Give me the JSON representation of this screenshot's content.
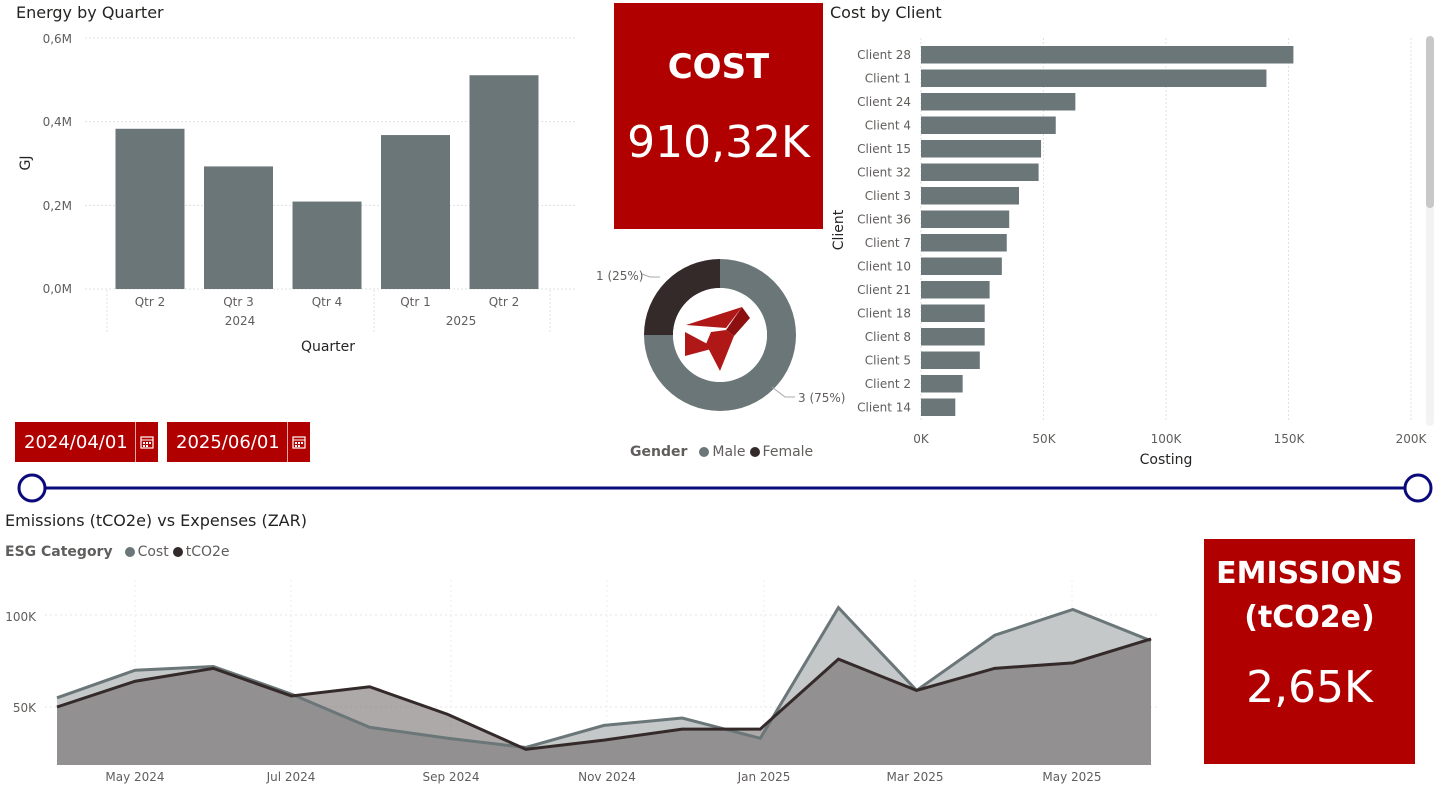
{
  "energy_chart": {
    "title": "Energy by Quarter",
    "ylabel": "GJ",
    "xlabel": "Quarter",
    "yticks": [
      "0,6M",
      "0,4M",
      "0,2M",
      "0,0M"
    ],
    "years": [
      "2024",
      "2025"
    ]
  },
  "cost_card": {
    "label": "COST",
    "value": "910,32K"
  },
  "gender_chart": {
    "legend_title": "Gender",
    "legend": [
      "Male",
      "Female"
    ],
    "labels": {
      "female": "1 (25%)",
      "male": "3 (75%)"
    }
  },
  "client_chart": {
    "title": "Cost by Client",
    "ylabel": "Client",
    "xlabel": "Costing",
    "xticks": [
      "0K",
      "50K",
      "100K",
      "150K",
      "200K"
    ]
  },
  "date_filter": {
    "start": "2024/04/01",
    "end": "2025/06/01"
  },
  "emissions_chart": {
    "title": "Emissions (tCO2e) vs Expenses (ZAR)",
    "legend_title": "ESG Category",
    "legend": [
      "Cost",
      "tCO2e"
    ],
    "yticks": [
      "100K",
      "50K"
    ],
    "xticks": [
      "May 2024",
      "Jul 2024",
      "Sep 2024",
      "Nov 2024",
      "Jan 2025",
      "Mar 2025",
      "May 2025"
    ]
  },
  "emissions_card": {
    "label_line1": "EMISSIONS",
    "label_line2": "(tCO2e)",
    "value": "2,65K"
  },
  "colors": {
    "accent": "#b00000",
    "series_gray": "#6b7679",
    "series_dark": "#342a2a",
    "slider": "#0a0a7a"
  },
  "chart_data": [
    {
      "type": "bar",
      "title": "Energy by Quarter",
      "xlabel": "Quarter",
      "ylabel": "GJ",
      "categories": [
        "Qtr 2",
        "Qtr 3",
        "Qtr 4",
        "Qtr 1",
        "Qtr 2"
      ],
      "category_years": [
        "2024",
        "2024",
        "2024",
        "2025",
        "2025"
      ],
      "values": [
        383000,
        293000,
        209000,
        368000,
        511000
      ],
      "ylim": [
        0,
        600000
      ],
      "grid": true
    },
    {
      "type": "pie",
      "legend_title": "Gender",
      "categories": [
        "Male",
        "Female"
      ],
      "values": [
        3,
        1
      ],
      "percent": [
        75,
        25
      ]
    },
    {
      "type": "bar",
      "orientation": "horizontal",
      "title": "Cost by Client",
      "xlabel": "Costing",
      "ylabel": "Client",
      "categories": [
        "Client 28",
        "Client 1",
        "Client 24",
        "Client 4",
        "Client 15",
        "Client 32",
        "Client 3",
        "Client 36",
        "Client 7",
        "Client 10",
        "Client 21",
        "Client 18",
        "Client 8",
        "Client 5",
        "Client 2",
        "Client 14"
      ],
      "values": [
        152000,
        141000,
        63000,
        55000,
        49000,
        48000,
        40000,
        36000,
        35000,
        33000,
        28000,
        26000,
        26000,
        24000,
        17000,
        14000
      ],
      "xlim": [
        0,
        200000
      ],
      "grid": true
    },
    {
      "type": "area",
      "title": "Emissions (tCO2e) vs Expenses (ZAR)",
      "legend_title": "ESG Category",
      "x": [
        "2024-04",
        "2024-05",
        "2024-06",
        "2024-07",
        "2024-08",
        "2024-09",
        "2024-10",
        "2024-11",
        "2024-12",
        "2025-01",
        "2025-02",
        "2025-03",
        "2025-04",
        "2025-05",
        "2025-06"
      ],
      "series": [
        {
          "name": "Cost",
          "values": [
            55000,
            70000,
            72000,
            57000,
            39000,
            33000,
            28000,
            40000,
            44000,
            33000,
            104000,
            59000,
            89000,
            103000,
            86000
          ]
        },
        {
          "name": "tCO2e",
          "values": [
            50000,
            64000,
            71000,
            56000,
            61000,
            46000,
            27000,
            32000,
            38000,
            38000,
            76000,
            59000,
            71000,
            74000,
            87000
          ]
        }
      ],
      "ylim": [
        20000,
        110000
      ],
      "grid": true,
      "legend_position": "top-left"
    }
  ]
}
